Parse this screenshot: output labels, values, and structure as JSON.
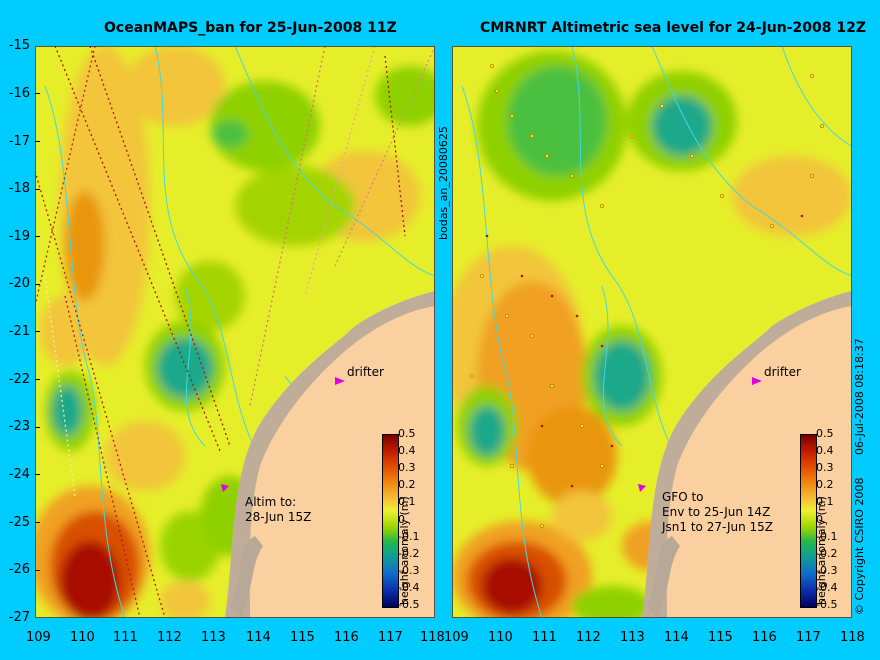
{
  "left_title": "OceanMAPS_ban for 25-Jun-2008 11Z",
  "right_title": "CMRNRT Altimetric sea level  for 24-Jun-2008 12Z",
  "y_ticks": [
    "-15",
    "-16",
    "-17",
    "-18",
    "-19",
    "-20",
    "-21",
    "-22",
    "-23",
    "-24",
    "-25",
    "-26",
    "-27"
  ],
  "x_ticks": [
    "109",
    "110",
    "111",
    "112",
    "113",
    "114",
    "115",
    "116",
    "117",
    "118"
  ],
  "middle_label": "bodas_an_20080625",
  "left_annotation_1": "Altim to:",
  "left_annotation_2": "28-Jun 15Z",
  "right_annotation_1": "GFO to",
  "right_annotation_2": "Env to 25-Jun 14Z",
  "right_annotation_3": "Jsn1 to 27-Jun 15Z",
  "drifter_label": "drifter",
  "colorbar_ticks": [
    "0.5",
    "0.4",
    "0.3",
    "0.2",
    "0.1",
    "0",
    "-0.1",
    "-0.2",
    "-0.3",
    "-0.4",
    "-0.5"
  ],
  "colorbar_label": "height anomaly (m)",
  "copyright": "© Copyright CSIRO 2008",
  "timestamp": "06-Jul-2008 08:18:37",
  "colors": {
    "background": "#00ccff",
    "land": "#fbd0a0",
    "coast": "#b8a898",
    "isobath": "#40d8e0",
    "drifter": "#e000e0"
  }
}
